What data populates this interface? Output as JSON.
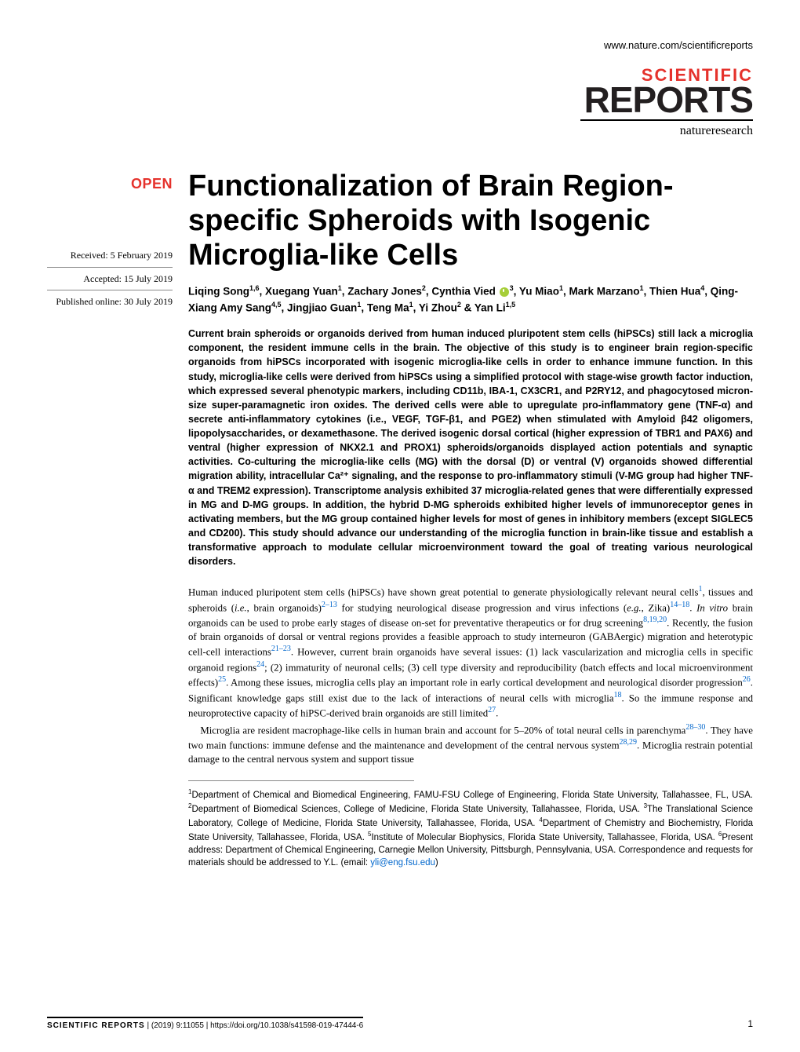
{
  "header": {
    "url": "www.nature.com/scientificreports"
  },
  "logo": {
    "line1": "SCIENTIFIC",
    "line2": "REPORTS",
    "tagline": "natureresearch"
  },
  "open_badge": "OPEN",
  "title": "Functionalization of Brain Region-specific Spheroids with Isogenic Microglia-like Cells",
  "dates": {
    "received": "Received: 5 February 2019",
    "accepted": "Accepted: 15 July 2019",
    "published": "Published online: 30 July 2019"
  },
  "authors_html": "Liqing Song<sup>1,6</sup>, Xuegang Yuan<sup>1</sup>, Zachary Jones<sup>2</sup>, Cynthia Vied <span class='orcid' data-name='orcid-icon' data-interactable='false'></span><sup>3</sup>, Yu Miao<sup>1</sup>, Mark Marzano<sup>1</sup>, Thien Hua<sup>4</sup>, Qing-Xiang Amy Sang<sup>4,5</sup>, Jingjiao Guan<sup>1</sup>, Teng Ma<sup>1</sup>, Yi Zhou<sup>2</sup> & Yan Li<sup>1,5</sup>",
  "abstract": "Current brain spheroids or organoids derived from human induced pluripotent stem cells (hiPSCs) still lack a microglia component, the resident immune cells in the brain. The objective of this study is to engineer brain region-specific organoids from hiPSCs incorporated with isogenic microglia-like cells in order to enhance immune function. In this study, microglia-like cells were derived from hiPSCs using a simplified protocol with stage-wise growth factor induction, which expressed several phenotypic markers, including CD11b, IBA-1, CX3CR1, and P2RY12, and phagocytosed micron-size super-paramagnetic iron oxides. The derived cells were able to upregulate pro-inflammatory gene (TNF-α) and secrete anti-inflammatory cytokines (i.e., VEGF, TGF-β1, and PGE2) when stimulated with Amyloid β42 oligomers, lipopolysaccharides, or dexamethasone. The derived isogenic dorsal cortical (higher expression of TBR1 and PAX6) and ventral (higher expression of NKX2.1 and PROX1) spheroids/organoids displayed action potentials and synaptic activities. Co-culturing the microglia-like cells (MG) with the dorsal (D) or ventral (V) organoids showed differential migration ability, intracellular Ca²⁺ signaling, and the response to pro-inflammatory stimuli (V-MG group had higher TNF-α and TREM2 expression). Transcriptome analysis exhibited 37 microglia-related genes that were differentially expressed in MG and D-MG groups. In addition, the hybrid D-MG spheroids exhibited higher levels of immunoreceptor genes in activating members, but the MG group contained higher levels for most of genes in inhibitory members (except SIGLEC5 and CD200). This study should advance our understanding of the microglia function in brain-like tissue and establish a transformative approach to modulate cellular microenvironment toward the goal of treating various neurological disorders.",
  "body": {
    "p1_pre": "Human induced pluripotent stem cells (hiPSCs) have shown great potential to generate physiologically relevant neural cells",
    "r1": "1",
    "p1_mid1": ", tissues and spheroids (",
    "ie": "i.e.",
    "p1_mid2": ", brain organoids)",
    "r2": "2–13",
    "p1_mid3": " for studying neurological disease progression and virus infections (",
    "eg": "e.g.",
    "p1_mid4": ", Zika)",
    "r3": "14–18",
    "p1_mid5": ". ",
    "iv": "In vitro",
    "p1_mid6": " brain organoids can be used to probe early stages of disease on-set for preventative therapeutics or for drug screening",
    "r4": "8,19,20",
    "p1_mid7": ". Recently, the fusion of brain organoids of dorsal or ventral regions provides a feasible approach to study interneuron (GABAergic) migration and heterotypic cell-cell interactions",
    "r5": "21–23",
    "p1_mid8": ". However, current brain organoids have several issues: (1) lack vascularization and microglia cells in specific organoid regions",
    "r6": "24",
    "p1_mid9": "; (2) immaturity of neuronal cells; (3) cell type diversity and reproducibility (batch effects and local microenvironment effects)",
    "r7": "25",
    "p1_mid10": ". Among these issues, microglia cells play an important role in early cortical development and neurological disorder progression",
    "r8": "26",
    "p1_mid11": ". Significant knowledge gaps still exist due to the lack of interactions of neural cells with microglia",
    "r9": "18",
    "p1_mid12": ". So the immune response and neuroprotective capacity of hiPSC-derived brain organoids are still limited",
    "r10": "27",
    "p1_end": ".",
    "p2_pre": "Microglia are resident macrophage-like cells in human brain and account for 5–20% of total neural cells in parenchyma",
    "r11": "28–30",
    "p2_mid": ". They have two main functions: immune defense and the maintenance and development of the central nervous system",
    "r12": "28,29",
    "p2_end": ". Microglia restrain potential damage to the central nervous system and support tissue"
  },
  "affiliations_html": "<sup>1</sup>Department of Chemical and Biomedical Engineering, FAMU-FSU College of Engineering, Florida State University, Tallahassee, FL, USA. <sup>2</sup>Department of Biomedical Sciences, College of Medicine, Florida State University, Tallahassee, Florida, USA. <sup>3</sup>The Translational Science Laboratory, College of Medicine, Florida State University, Tallahassee, Florida, USA. <sup>4</sup>Department of Chemistry and Biochemistry, Florida State University, Tallahassee, Florida, USA. <sup>5</sup>Institute of Molecular Biophysics, Florida State University, Tallahassee, Florida, USA. <sup>6</sup>Present address: Department of Chemical Engineering, Carnegie Mellon University, Pittsburgh, Pennsylvania, USA. Correspondence and requests for materials should be addressed to Y.L. (email: <span class='email-link' data-name='corresponding-email' data-interactable='true'>yli@eng.fsu.edu</span>)",
  "footer": {
    "journal": "SCIENTIFIC REPORTS",
    "citation": "(2019) 9:11055 | https://doi.org/10.1038/s41598-019-47444-6",
    "page": "1"
  },
  "colors": {
    "accent_red": "#e5322c",
    "link_blue": "#0066cc",
    "orcid_green": "#a6ce39"
  }
}
